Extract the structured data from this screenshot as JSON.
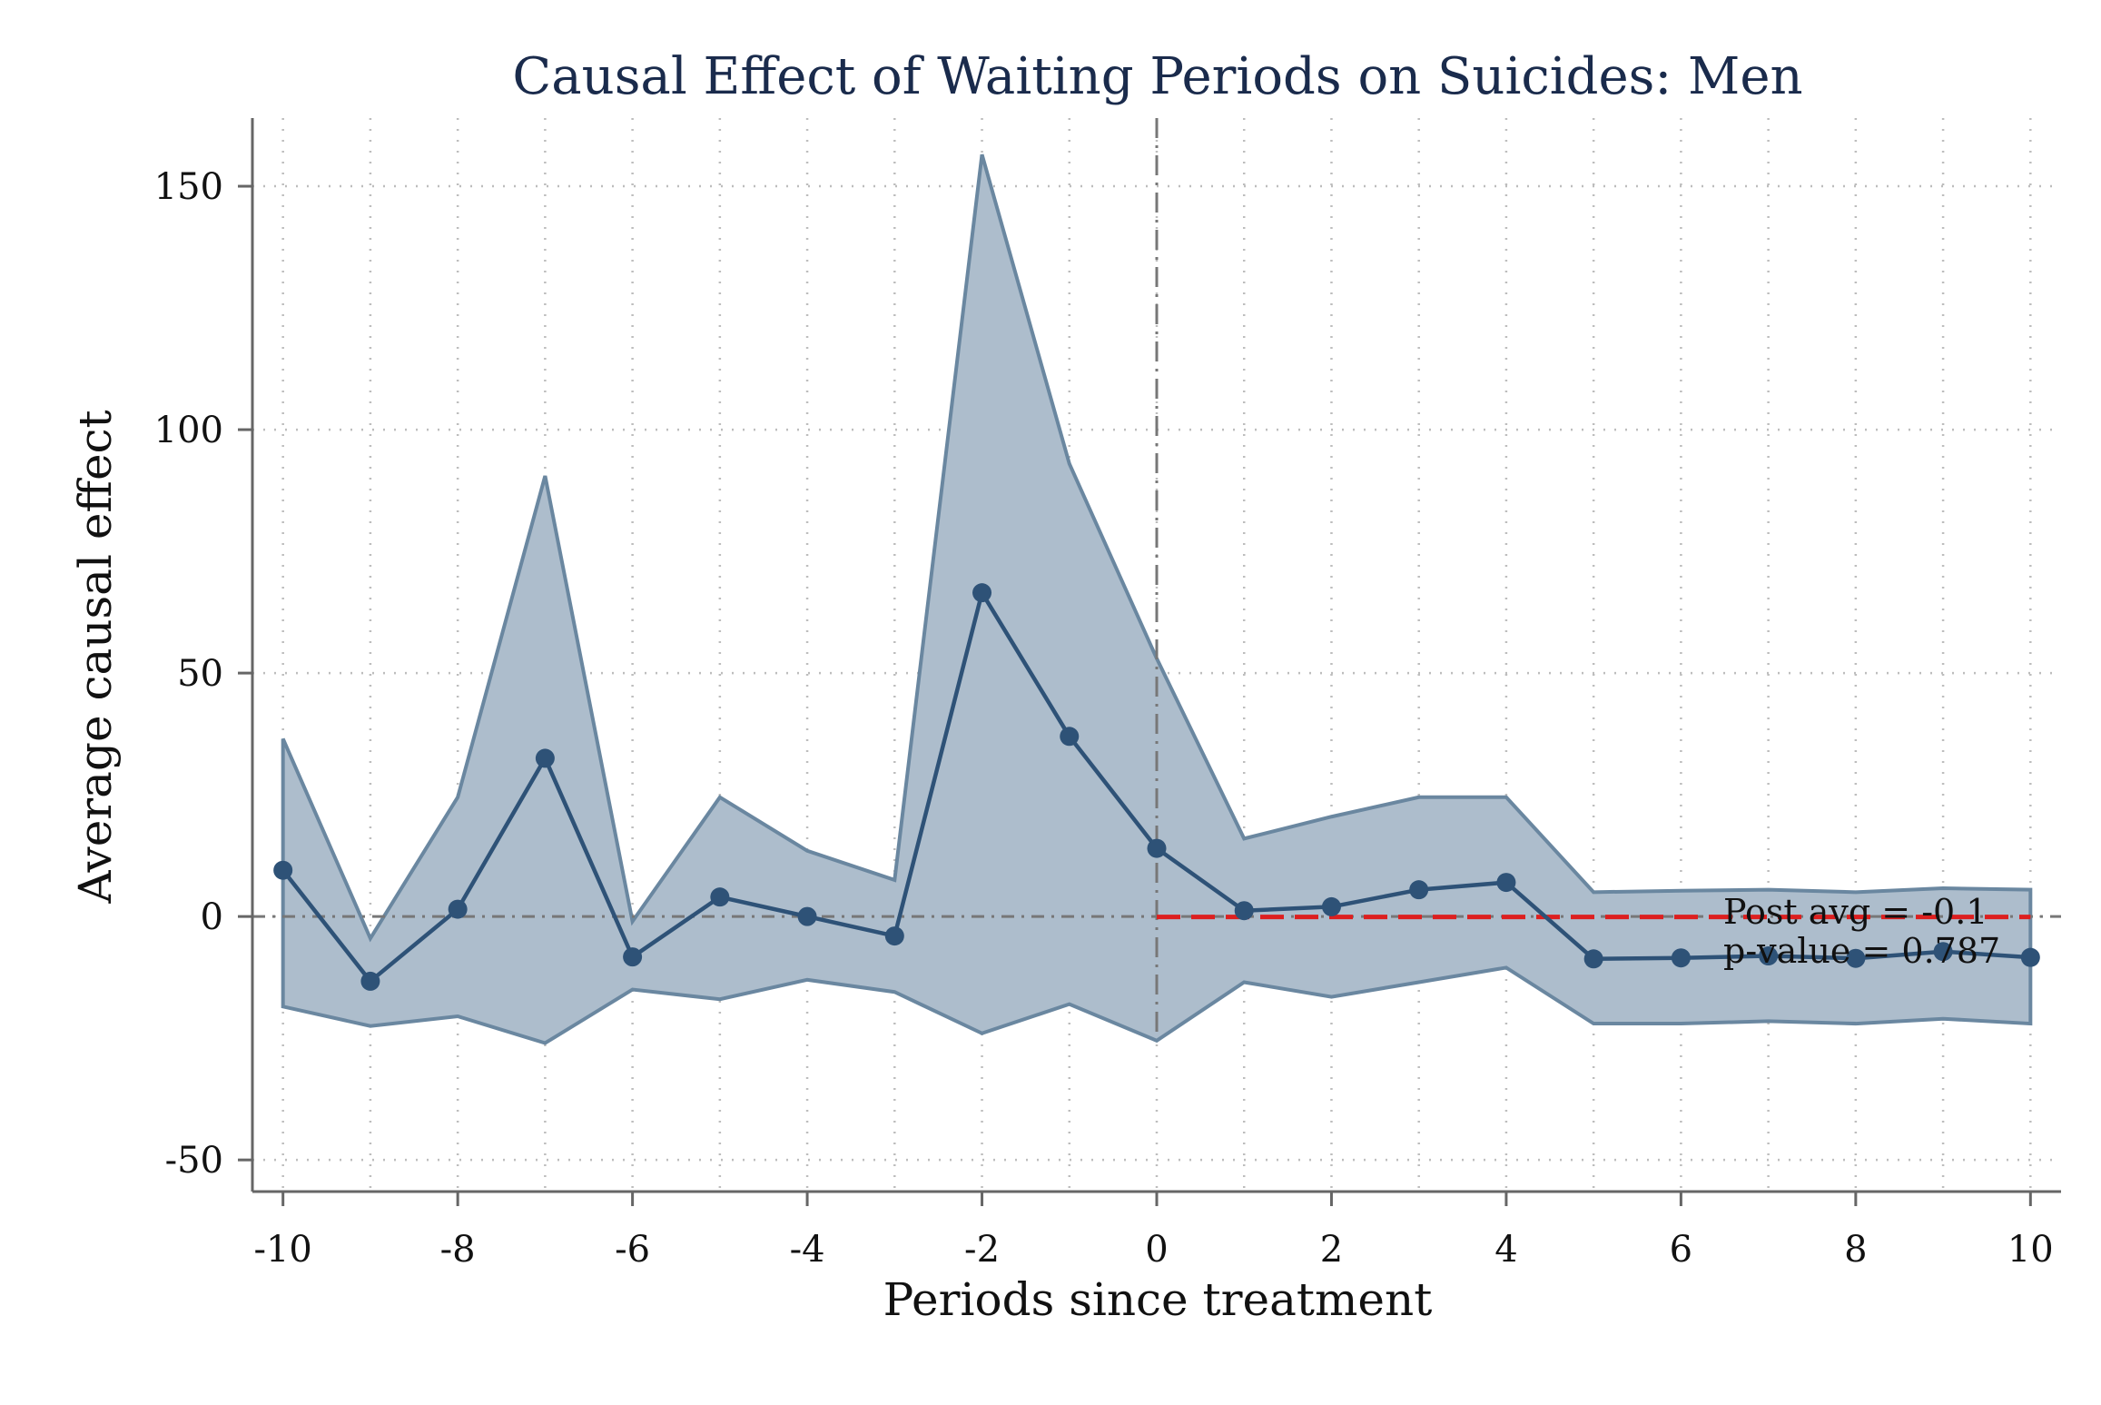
{
  "chart_data": {
    "type": "line",
    "title": "Causal Effect of Waiting Periods on Suicides: Men",
    "xlabel": "Periods since treatment",
    "ylabel": "Average causal effect",
    "xlim": [
      -10.35,
      10.35
    ],
    "ylim": [
      -56.5,
      164
    ],
    "x_ticks": [
      -10,
      -8,
      -6,
      -4,
      -2,
      0,
      2,
      4,
      6,
      8,
      10
    ],
    "y_ticks": [
      -50,
      0,
      50,
      100,
      150
    ],
    "grid": true,
    "x": [
      -10,
      -9,
      -8,
      -7,
      -6,
      -5,
      -4,
      -3,
      -2,
      -1,
      0,
      1,
      2,
      3,
      4,
      5,
      6,
      7,
      8,
      9,
      10
    ],
    "series": [
      {
        "values": [
          9.5,
          -13.3,
          1.5,
          32.5,
          -8.3,
          4.0,
          0.0,
          -4.0,
          66.5,
          37.0,
          14.0,
          1.2,
          2.0,
          5.5,
          7.0,
          -8.7,
          -8.5,
          -8.1,
          -8.6,
          -7.2,
          -8.4
        ],
        "ci_lower": [
          -18.5,
          -22.5,
          -20.5,
          -26.0,
          -15.0,
          -17.0,
          -13.0,
          -15.5,
          -24.0,
          -18.0,
          -25.5,
          -13.5,
          -16.5,
          -13.5,
          -10.5,
          -22.0,
          -22.0,
          -21.5,
          -22.0,
          -21.0,
          -22.0
        ],
        "ci_upper": [
          36.5,
          -4.5,
          24.5,
          90.5,
          -1.0,
          24.5,
          13.5,
          7.5,
          156.5,
          93.0,
          53.0,
          16.0,
          20.5,
          24.5,
          24.5,
          5.0,
          5.3,
          5.5,
          5.0,
          5.8,
          5.5
        ],
        "color": "#2e5277",
        "ci_color": "#adbdcc",
        "ci_edge_color": "#6a87a0"
      }
    ],
    "reference_lines": {
      "zero_line_color": "#777777",
      "treatment_line_x": 0,
      "treatment_line_color": "#777777",
      "post_avg_value": -0.1,
      "post_avg_color": "#dd1f1f"
    },
    "annotations": {
      "post_avg": "Post avg = -0.1",
      "p_value": "p-value = 0.787"
    }
  }
}
